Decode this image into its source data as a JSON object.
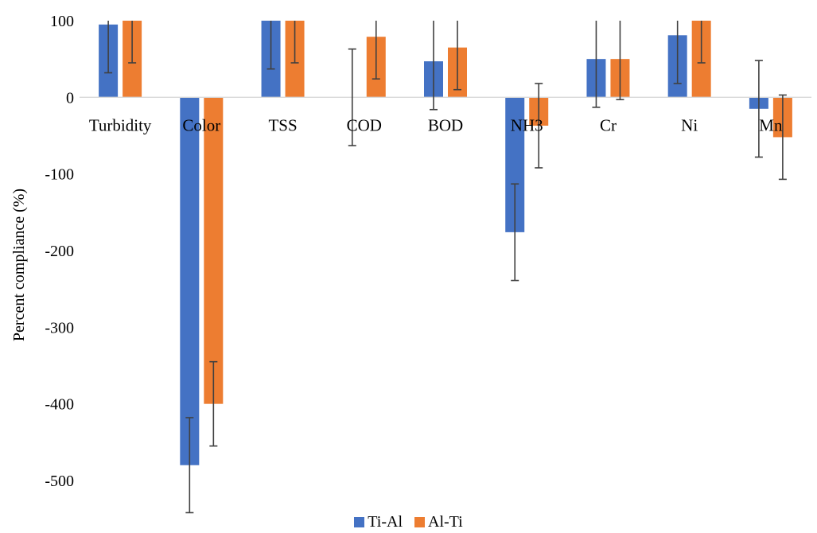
{
  "chart_data": {
    "type": "bar",
    "title": "",
    "xlabel": "",
    "ylabel": "Percent compliance (%)",
    "ylim": [
      -500,
      100
    ],
    "yticks": [
      100,
      0,
      -100,
      -200,
      -300,
      -400,
      -500
    ],
    "grid": false,
    "legend_position": "bottom",
    "categories": [
      "Turbidity",
      "Color",
      "TSS",
      "COD",
      "BOD",
      "NH3",
      "Cr",
      "Ni",
      "Mn"
    ],
    "series": [
      {
        "name": "Ti-Al",
        "color": "#4472C4",
        "values": [
          95,
          -480,
          100,
          0,
          47,
          -176,
          50,
          81,
          -15
        ],
        "error": [
          63,
          62,
          63,
          63,
          63,
          63,
          63,
          63,
          63
        ]
      },
      {
        "name": "Al-Ti",
        "color": "#ED7D31",
        "values": [
          100,
          -400,
          100,
          79,
          65,
          -37,
          50,
          100,
          -52
        ],
        "error": [
          55,
          55,
          55,
          55,
          55,
          55,
          53,
          55,
          55
        ]
      }
    ]
  }
}
